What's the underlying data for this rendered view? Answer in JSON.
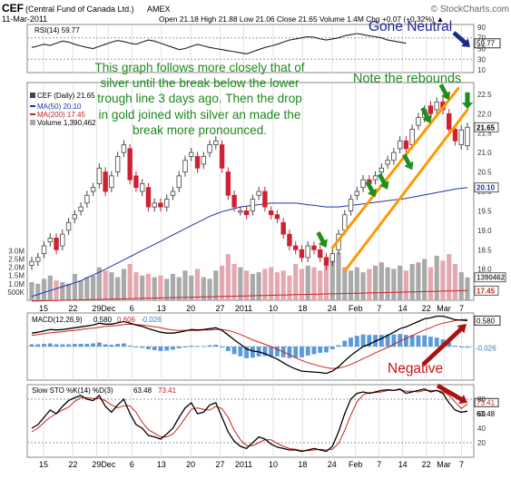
{
  "header": {
    "symbol": "CEF",
    "name": "(Central Fund of Canada Ltd.)",
    "exchange": "AMEX",
    "date": "11-Mar-2011",
    "quote": "Open 21.18  High 21.88  Low 21.06  Close 21.65  Volume 1.4M  Chg +0.07 (+0.32%) ▲",
    "brand": "© StockCharts.com"
  },
  "annotations": {
    "main": "This graph follows more closely that of silver until the break below the lower trough line 3 days ago. Then the drop in gold joined with silver an made the break more pronounced.",
    "rebounds": "Note the rebounds",
    "neutral": "Gone Neutral",
    "negative": "Negative"
  },
  "colors": {
    "up": "#444444",
    "down": "#cc2233",
    "ma50": "#2233aa",
    "ma200": "#cc2222",
    "volume_up": "#aaaaaa",
    "volume_down": "#e4a8b0",
    "channel": "#ff9900",
    "arrow_green": "#1e8f1e",
    "arrow_red": "#aa1111",
    "arrow_blue": "#1a2a88",
    "macd_hist": "#5a9ad8"
  },
  "chart_data": [
    {
      "type": "line",
      "panel": "rsi",
      "legend": "RSI(14) 59.77",
      "current_label": "59.77",
      "ylim": [
        5,
        95
      ],
      "reference_lines": [
        70,
        30
      ],
      "yticks": [
        "90",
        "70",
        "50",
        "30",
        "10"
      ],
      "values": [
        52,
        55,
        58,
        56,
        60,
        64,
        62,
        58,
        55,
        52,
        50,
        54,
        58,
        62,
        65,
        63,
        60,
        58,
        62,
        66,
        64,
        60,
        56,
        52,
        48,
        50,
        54,
        58,
        55,
        52,
        50,
        48,
        46,
        44,
        42,
        40,
        44,
        48,
        52,
        55,
        58,
        62,
        66,
        68,
        70,
        72,
        71,
        68,
        66,
        68,
        70,
        74,
        76,
        78,
        76,
        74,
        72,
        70,
        66,
        64,
        62,
        59.77
      ]
    },
    {
      "type": "candlestick",
      "panel": "price",
      "legend": {
        "symbol": "CEF (Daily) 21.65",
        "ma50": "MA(50) 20.10",
        "ma200": "MA(200) 17.45",
        "volume": "Volume 1,390,462"
      },
      "ylim": [
        17.2,
        22.8
      ],
      "yticks": [
        "22.5",
        "22.0",
        "21.5",
        "21.0",
        "20.5",
        "20.0",
        "19.5",
        "19.0",
        "18.5",
        "18.0",
        "17.5"
      ],
      "price_labels": {
        "close": "21.65",
        "ma50": "20.10",
        "ma200": "17.45"
      },
      "volume_label": "1390462",
      "volume_axis": [
        "3.0M",
        "2.5M",
        "2.0M",
        "1.5M",
        "1.0M",
        "500K"
      ],
      "volume_max": 3300000,
      "close": [
        18.2,
        18.3,
        18.6,
        18.8,
        18.5,
        18.9,
        19.2,
        19.4,
        19.6,
        19.9,
        20.1,
        20.6,
        20.0,
        20.4,
        20.9,
        21.2,
        20.3,
        20.1,
        20.2,
        19.6,
        19.7,
        19.6,
        19.8,
        20.0,
        20.4,
        20.8,
        21.0,
        20.6,
        20.9,
        21.2,
        21.3,
        20.6,
        19.9,
        19.6,
        19.5,
        19.4,
        19.8,
        20.0,
        19.6,
        19.4,
        19.3,
        18.9,
        18.6,
        18.5,
        18.3,
        18.6,
        18.5,
        18.3,
        18.1,
        18.4,
        18.9,
        19.4,
        19.8,
        20.0,
        20.3,
        20.2,
        20.4,
        20.6,
        20.8,
        21.0,
        21.3,
        21.1,
        21.6,
        21.9,
        22.1,
        22.0,
        22.3,
        22.1,
        21.6,
        21.3,
        21.58,
        21.65
      ],
      "open": [
        18.1,
        18.2,
        18.4,
        18.7,
        18.8,
        18.6,
        19.0,
        19.3,
        19.5,
        19.7,
        20.0,
        20.2,
        20.5,
        20.1,
        20.5,
        21.0,
        21.1,
        20.4,
        20.0,
        20.1,
        19.6,
        19.7,
        19.6,
        19.9,
        20.1,
        20.5,
        20.9,
        20.9,
        20.7,
        21.0,
        21.2,
        21.2,
        20.5,
        19.9,
        19.5,
        19.5,
        19.5,
        19.9,
        20.0,
        19.5,
        19.4,
        19.2,
        18.9,
        18.6,
        18.5,
        18.3,
        18.6,
        18.5,
        18.3,
        18.2,
        18.5,
        19.0,
        19.5,
        19.9,
        20.1,
        20.3,
        20.3,
        20.5,
        20.7,
        20.8,
        21.1,
        21.3,
        21.2,
        21.7,
        21.9,
        22.2,
        22.1,
        22.3,
        22.0,
        21.6,
        21.2,
        21.18
      ],
      "ma50": [
        17.3,
        17.35,
        17.4,
        17.45,
        17.5,
        17.55,
        17.6,
        17.65,
        17.7,
        17.78,
        17.85,
        17.92,
        18.0,
        18.08,
        18.16,
        18.24,
        18.32,
        18.4,
        18.48,
        18.56,
        18.64,
        18.72,
        18.8,
        18.88,
        18.96,
        19.04,
        19.12,
        19.2,
        19.28,
        19.36,
        19.42,
        19.48,
        19.52,
        19.56,
        19.6,
        19.62,
        19.64,
        19.66,
        19.68,
        19.7,
        19.7,
        19.7,
        19.7,
        19.7,
        19.68,
        19.66,
        19.64,
        19.62,
        19.6,
        19.6,
        19.6,
        19.62,
        19.64,
        19.66,
        19.68,
        19.7,
        19.72,
        19.74,
        19.76,
        19.78,
        19.8,
        19.82,
        19.85,
        19.88,
        19.91,
        19.94,
        19.97,
        20.0,
        20.03,
        20.06,
        20.08,
        20.1
      ],
      "volume": [
        1.1,
        1.0,
        1.3,
        1.5,
        1.2,
        1.1,
        1.0,
        1.6,
        1.2,
        1.4,
        1.5,
        2.0,
        1.8,
        1.7,
        1.4,
        1.9,
        2.2,
        1.7,
        1.5,
        1.6,
        1.4,
        1.5,
        1.3,
        1.6,
        1.4,
        1.8,
        1.5,
        1.9,
        1.4,
        1.3,
        1.8,
        2.1,
        2.8,
        2.2,
        2.0,
        1.8,
        1.6,
        1.7,
        1.9,
        2.0,
        1.7,
        1.8,
        1.5,
        2.2,
        1.9,
        2.1,
        2.0,
        1.8,
        2.4,
        2.6,
        2.9,
        2.0,
        1.8,
        2.0,
        1.7,
        1.9,
        2.1,
        2.3,
        2.0,
        1.9,
        2.1,
        1.8,
        2.2,
        2.3,
        2.5,
        2.0,
        2.7,
        2.4,
        2.8,
        2.2,
        1.7,
        1.39
      ]
    },
    {
      "type": "line",
      "panel": "macd",
      "legend": {
        "prefix": "MACD(12,26,9)",
        "macd": "0.580",
        "signal": "0.606",
        "hist": "-0.026"
      },
      "ylim": [
        -0.75,
        0.75
      ],
      "current_labels": {
        "macd": "0.580",
        "hist": "-0.026"
      },
      "macd": [
        0.3,
        0.32,
        0.35,
        0.38,
        0.37,
        0.38,
        0.4,
        0.42,
        0.44,
        0.46,
        0.48,
        0.52,
        0.5,
        0.5,
        0.53,
        0.56,
        0.52,
        0.48,
        0.45,
        0.4,
        0.36,
        0.32,
        0.3,
        0.3,
        0.32,
        0.35,
        0.38,
        0.37,
        0.38,
        0.4,
        0.42,
        0.36,
        0.26,
        0.15,
        0.05,
        -0.05,
        -0.1,
        -0.12,
        -0.16,
        -0.22,
        -0.28,
        -0.36,
        -0.44,
        -0.5,
        -0.55,
        -0.56,
        -0.57,
        -0.58,
        -0.6,
        -0.55,
        -0.45,
        -0.32,
        -0.2,
        -0.1,
        0.0,
        0.05,
        0.12,
        0.18,
        0.25,
        0.32,
        0.4,
        0.44,
        0.5,
        0.56,
        0.62,
        0.64,
        0.68,
        0.68,
        0.64,
        0.6,
        0.59,
        0.58
      ],
      "signal": [
        0.25,
        0.27,
        0.29,
        0.31,
        0.32,
        0.33,
        0.35,
        0.36,
        0.38,
        0.4,
        0.41,
        0.43,
        0.45,
        0.46,
        0.47,
        0.49,
        0.5,
        0.49,
        0.48,
        0.46,
        0.44,
        0.42,
        0.39,
        0.37,
        0.36,
        0.36,
        0.36,
        0.36,
        0.37,
        0.37,
        0.38,
        0.38,
        0.36,
        0.32,
        0.27,
        0.21,
        0.15,
        0.1,
        0.05,
        0.0,
        -0.06,
        -0.12,
        -0.18,
        -0.25,
        -0.31,
        -0.36,
        -0.4,
        -0.44,
        -0.47,
        -0.49,
        -0.48,
        -0.45,
        -0.4,
        -0.34,
        -0.27,
        -0.21,
        -0.14,
        -0.08,
        -0.02,
        0.05,
        0.12,
        0.18,
        0.24,
        0.31,
        0.37,
        0.42,
        0.48,
        0.52,
        0.55,
        0.58,
        0.6,
        0.606
      ],
      "hist": [
        0.05,
        0.05,
        0.06,
        0.07,
        0.05,
        0.05,
        0.05,
        0.06,
        0.06,
        0.06,
        0.07,
        0.09,
        0.05,
        0.04,
        0.06,
        0.07,
        0.02,
        -0.01,
        -0.03,
        -0.06,
        -0.08,
        -0.1,
        -0.09,
        -0.07,
        -0.04,
        -0.01,
        0.02,
        0.01,
        0.01,
        0.03,
        0.04,
        -0.02,
        -0.1,
        -0.17,
        -0.22,
        -0.26,
        -0.25,
        -0.22,
        -0.21,
        -0.22,
        -0.22,
        -0.24,
        -0.26,
        -0.25,
        -0.24,
        -0.2,
        -0.17,
        -0.14,
        -0.13,
        -0.06,
        0.03,
        0.13,
        0.2,
        0.24,
        0.27,
        0.26,
        0.26,
        0.26,
        0.27,
        0.27,
        0.28,
        0.26,
        0.26,
        0.25,
        0.25,
        0.22,
        0.2,
        0.16,
        0.09,
        0.02,
        -0.01,
        -0.026
      ]
    },
    {
      "type": "line",
      "panel": "stochastic",
      "legend": {
        "prefix": "Slow STO %K(14) %D(3)",
        "k": "63.48",
        "d": "73.41"
      },
      "ylim": [
        0,
        100
      ],
      "reference_lines": [
        80,
        20
      ],
      "yticks": [
        "80",
        "60",
        "40",
        "20"
      ],
      "current_labels": {
        "d": "73.41",
        "k": "63.48"
      },
      "k": [
        40,
        45,
        55,
        65,
        60,
        70,
        78,
        82,
        85,
        80,
        78,
        85,
        70,
        62,
        72,
        80,
        60,
        45,
        40,
        30,
        28,
        25,
        32,
        40,
        55,
        68,
        75,
        60,
        62,
        72,
        75,
        55,
        35,
        22,
        15,
        12,
        20,
        28,
        25,
        18,
        14,
        12,
        10,
        10,
        8,
        10,
        12,
        10,
        8,
        15,
        35,
        60,
        80,
        88,
        90,
        88,
        90,
        92,
        93,
        92,
        94,
        88,
        90,
        92,
        94,
        90,
        92,
        88,
        75,
        65,
        62,
        63.48
      ],
      "d": [
        35,
        40,
        48,
        55,
        60,
        65,
        69,
        77,
        82,
        82,
        81,
        81,
        78,
        72,
        68,
        71,
        71,
        62,
        48,
        38,
        33,
        28,
        28,
        32,
        42,
        54,
        66,
        68,
        66,
        65,
        70,
        67,
        55,
        37,
        24,
        16,
        16,
        20,
        24,
        24,
        19,
        15,
        12,
        11,
        9,
        9,
        10,
        11,
        10,
        11,
        19,
        37,
        58,
        76,
        86,
        89,
        89,
        90,
        92,
        92,
        93,
        91,
        91,
        90,
        92,
        92,
        92,
        90,
        85,
        76,
        67,
        73.41
      ]
    }
  ],
  "x_axis_labels": [
    "15",
    "22",
    "29",
    "Dec",
    "6",
    "13",
    "20",
    "27",
    "2011",
    "10",
    "18",
    "24",
    "Feb",
    "7",
    "14",
    "22",
    "Mar",
    "7"
  ]
}
